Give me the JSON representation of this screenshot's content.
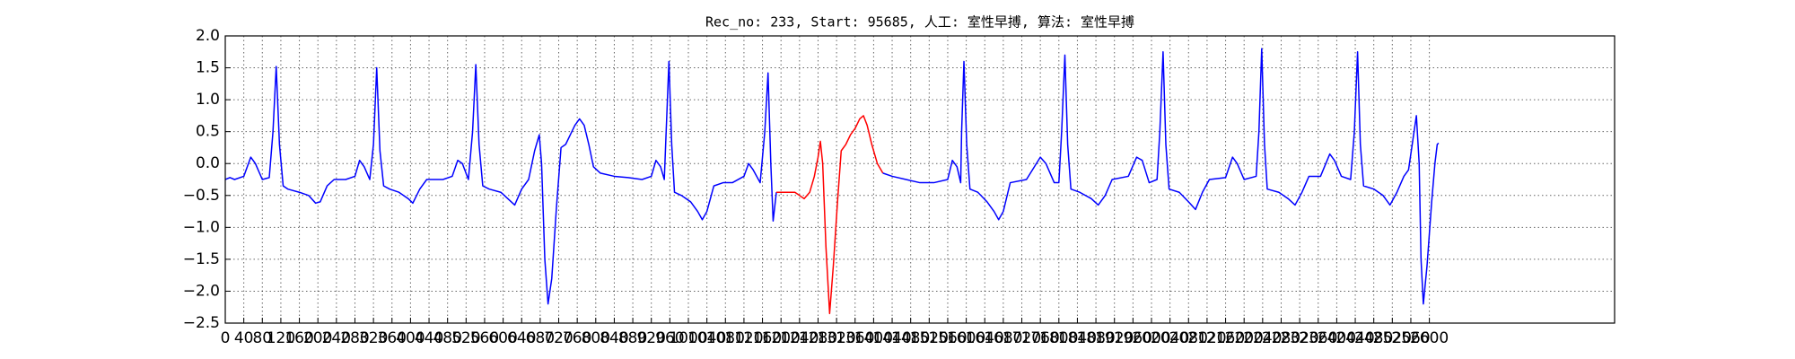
{
  "chart_data": {
    "type": "line",
    "title": "Rec_no: 233, Start: 95685, 人工: 室性早搏, 算法: 室性早搏",
    "xlim": [
      0,
      3000
    ],
    "ylim": [
      -2.5,
      2.0
    ],
    "xticks": [
      0,
      40,
      80,
      120,
      160,
      200,
      240,
      280,
      320,
      360,
      400,
      440,
      480,
      520,
      560,
      600,
      640,
      680,
      720,
      760,
      800,
      840,
      880,
      920,
      960,
      1000,
      1040,
      1080,
      1120,
      1160,
      1200,
      1240,
      1280,
      1320,
      1360,
      1400,
      1440,
      1480,
      1520,
      1560,
      1600,
      1640,
      1680,
      1720,
      1760,
      1800,
      1840,
      1880,
      1920,
      1960,
      2000,
      2040,
      2080,
      2120,
      2160,
      2200,
      2240,
      2280,
      2320,
      2360,
      2400,
      2440,
      2480,
      2520,
      2560,
      2600
    ],
    "yticks": [
      {
        "value": 2.0,
        "label": "2.0"
      },
      1.5,
      {
        "value": 1.0,
        "label": "1.0"
      },
      0.5,
      {
        "value": 0.0,
        "label": "0.0"
      },
      {
        "value": -0.5,
        "label": "−0.5"
      },
      {
        "value": -1.0,
        "label": "−1.0"
      },
      {
        "value": -1.5,
        "label": "−1.5"
      },
      {
        "value": -2.0,
        "label": "−2.0"
      },
      {
        "value": -2.5,
        "label": "−2.5"
      }
    ],
    "grid": true,
    "series": [
      {
        "color": "#0000ff",
        "x": [
          0,
          10,
          20,
          40,
          55,
          65,
          80,
          95,
          103,
          110,
          117,
          125,
          135,
          160,
          180,
          195,
          205,
          220,
          235,
          260,
          280,
          290,
          300,
          312,
          320,
          327,
          334,
          342,
          355,
          375,
          395,
          405,
          420,
          435,
          470,
          490,
          502,
          512,
          525,
          534,
          541,
          548,
          556,
          570,
          595,
          610,
          625,
          640,
          655,
          668,
          678,
          683,
          690,
          697,
          705,
          715,
          725,
          735,
          745,
          755,
          765,
          775,
          785,
          795,
          810,
          840,
          870,
          900,
          920,
          930,
          940,
          948,
          952,
          958,
          964,
          970,
          985,
          1005,
          1020,
          1030,
          1040,
          1055,
          1075,
          1095,
          1120,
          1130,
          1140,
          1155,
          1165,
          1172,
          1178,
          1183,
          1190
        ],
        "values": [
          -0.25,
          -0.22,
          -0.25,
          -0.2,
          0.1,
          0.0,
          -0.25,
          -0.22,
          0.5,
          1.52,
          0.3,
          -0.35,
          -0.4,
          -0.45,
          -0.5,
          -0.62,
          -0.6,
          -0.35,
          -0.25,
          -0.25,
          -0.2,
          0.05,
          -0.05,
          -0.25,
          0.3,
          1.5,
          0.2,
          -0.35,
          -0.4,
          -0.45,
          -0.55,
          -0.62,
          -0.4,
          -0.25,
          -0.25,
          -0.2,
          0.05,
          0.0,
          -0.25,
          0.5,
          1.55,
          0.3,
          -0.35,
          -0.4,
          -0.45,
          -0.55,
          -0.65,
          -0.4,
          -0.25,
          0.2,
          0.45,
          0.0,
          -1.5,
          -2.2,
          -1.8,
          -0.7,
          0.25,
          0.3,
          0.45,
          0.6,
          0.7,
          0.6,
          0.3,
          -0.05,
          -0.15,
          -0.2,
          -0.22,
          -0.25,
          -0.2,
          0.05,
          -0.05,
          -0.25,
          0.5,
          1.6,
          0.3,
          -0.45,
          -0.5,
          -0.6,
          -0.75,
          -0.88,
          -0.75,
          -0.35,
          -0.3,
          -0.3,
          -0.2,
          0.0,
          -0.1,
          -0.3,
          0.5,
          1.42,
          0.0,
          -0.9,
          -0.45
        ]
      },
      {
        "color": "#ff0000",
        "x": [
          1190,
          1210,
          1230,
          1250,
          1262,
          1272,
          1280,
          1285,
          1290,
          1297,
          1305,
          1313,
          1322,
          1330,
          1340,
          1350,
          1360,
          1370,
          1378,
          1386,
          1396,
          1408,
          1420
        ],
        "values": [
          -0.45,
          -0.45,
          -0.45,
          -0.55,
          -0.45,
          -0.2,
          0.1,
          0.35,
          0.0,
          -1.3,
          -2.35,
          -1.6,
          -0.6,
          0.2,
          0.3,
          0.45,
          0.55,
          0.7,
          0.75,
          0.6,
          0.3,
          0.0,
          -0.15
        ]
      },
      {
        "color": "#0000ff",
        "x": [
          1420,
          1440,
          1470,
          1500,
          1530,
          1560,
          1570,
          1580,
          1588,
          1590,
          1595,
          1601,
          1608,
          1625,
          1645,
          1660,
          1670,
          1680,
          1695,
          1730,
          1760,
          1772,
          1790,
          1800,
          1806,
          1813,
          1819,
          1826,
          1845,
          1870,
          1885,
          1900,
          1915,
          1950,
          1968,
          1980,
          1995,
          2012,
          2018,
          2025,
          2031,
          2038,
          2060,
          2080,
          2095,
          2110,
          2125,
          2160,
          2175,
          2185,
          2200,
          2226,
          2232,
          2238,
          2244,
          2250,
          2275,
          2295,
          2310,
          2325,
          2340,
          2365,
          2385,
          2395,
          2410,
          2430,
          2438,
          2445,
          2451,
          2458,
          2480,
          2500,
          2515,
          2530,
          2545,
          2555,
          2565,
          2572,
          2578,
          2582,
          2587,
          2595,
          2605,
          2612,
          2617,
          2620
        ],
        "values": [
          -0.15,
          -0.2,
          -0.25,
          -0.3,
          -0.3,
          -0.25,
          0.05,
          -0.05,
          -0.3,
          0.5,
          1.6,
          0.3,
          -0.4,
          -0.45,
          -0.6,
          -0.75,
          -0.88,
          -0.75,
          -0.3,
          -0.25,
          0.1,
          0.0,
          -0.3,
          -0.3,
          0.5,
          1.7,
          0.3,
          -0.4,
          -0.45,
          -0.55,
          -0.65,
          -0.5,
          -0.25,
          -0.2,
          0.1,
          0.05,
          -0.3,
          -0.25,
          0.5,
          1.75,
          0.3,
          -0.4,
          -0.45,
          -0.6,
          -0.72,
          -0.45,
          -0.25,
          -0.22,
          0.1,
          0.0,
          -0.25,
          -0.2,
          0.5,
          1.8,
          0.3,
          -0.4,
          -0.45,
          -0.55,
          -0.65,
          -0.45,
          -0.2,
          -0.2,
          0.15,
          0.05,
          -0.2,
          -0.25,
          0.5,
          1.75,
          0.3,
          -0.35,
          -0.4,
          -0.5,
          -0.65,
          -0.45,
          -0.2,
          -0.1,
          0.4,
          0.75,
          0.0,
          -1.5,
          -2.2,
          -1.6,
          -0.6,
          0.0,
          0.3,
          0.32
        ]
      }
    ]
  }
}
